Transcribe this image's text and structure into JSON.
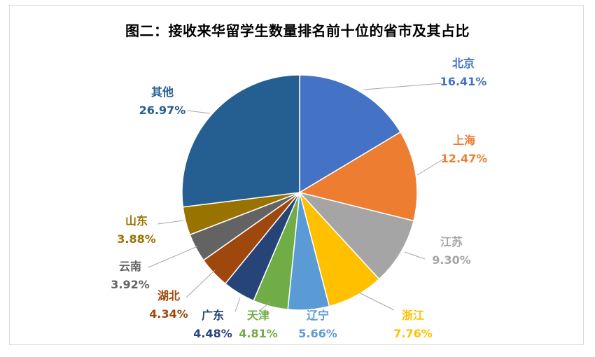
{
  "chart_data": {
    "type": "pie",
    "title": "图二：接收来华留学生数量排名前十位的省市及其占比",
    "slices": [
      {
        "name": "北京",
        "pct_label": "16.41%",
        "value": 16.41,
        "color": "#4472C4"
      },
      {
        "name": "上海",
        "pct_label": "12.47%",
        "value": 12.47,
        "color": "#ED7D31"
      },
      {
        "name": "江苏",
        "pct_label": "9.30%",
        "value": 9.3,
        "color": "#A5A5A5"
      },
      {
        "name": "浙江",
        "pct_label": "7.76%",
        "value": 7.76,
        "color": "#FFC000"
      },
      {
        "name": "辽宁",
        "pct_label": "5.66%",
        "value": 5.66,
        "color": "#5B9BD5"
      },
      {
        "name": "天津",
        "pct_label": "4.81%",
        "value": 4.81,
        "color": "#70AD47"
      },
      {
        "name": "广东",
        "pct_label": "4.48%",
        "value": 4.48,
        "color": "#264478"
      },
      {
        "name": "湖北",
        "pct_label": "4.34%",
        "value": 4.34,
        "color": "#9E480E"
      },
      {
        "name": "云南",
        "pct_label": "3.92%",
        "value": 3.92,
        "color": "#636363"
      },
      {
        "name": "山东",
        "pct_label": "3.88%",
        "value": 3.88,
        "color": "#997300"
      },
      {
        "name": "其他",
        "pct_label": "26.97%",
        "value": 26.97,
        "color": "#255E91"
      }
    ]
  }
}
